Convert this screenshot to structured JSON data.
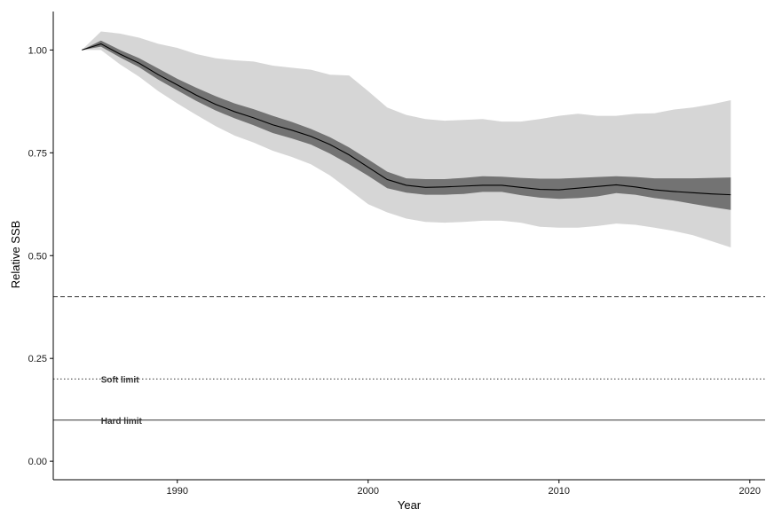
{
  "chart_data": {
    "type": "area",
    "title": "",
    "xlabel": "Year",
    "ylabel": "Relative SSB",
    "xlim": [
      1983.5,
      2020.8
    ],
    "ylim": [
      -0.045,
      1.1
    ],
    "x_ticks": [
      1990,
      2000,
      2010,
      2020
    ],
    "y_ticks": [
      0.0,
      0.25,
      0.5,
      0.75,
      1.0
    ],
    "x_tick_labels": [
      "1990",
      "2000",
      "2010",
      "2020"
    ],
    "y_tick_labels": [
      "0.00",
      "0.25",
      "0.50",
      "0.75",
      "1.00"
    ],
    "grid": false,
    "colors": {
      "outer_band": "#d6d6d6",
      "inner_band": "#737373",
      "median": "#000000",
      "reference": "#333333"
    },
    "x": [
      1985,
      1986,
      1987,
      1988,
      1989,
      1990,
      1991,
      1992,
      1993,
      1994,
      1995,
      1996,
      1997,
      1998,
      1999,
      2000,
      2001,
      2002,
      2003,
      2004,
      2005,
      2006,
      2007,
      2008,
      2009,
      2010,
      2011,
      2012,
      2013,
      2014,
      2015,
      2016,
      2017,
      2018,
      2019
    ],
    "series": [
      {
        "role": "median",
        "values": [
          1.0,
          1.015,
          0.99,
          0.968,
          0.94,
          0.915,
          0.89,
          0.868,
          0.85,
          0.835,
          0.818,
          0.805,
          0.79,
          0.77,
          0.745,
          0.715,
          0.685,
          0.671,
          0.666,
          0.667,
          0.669,
          0.671,
          0.671,
          0.666,
          0.661,
          0.66,
          0.664,
          0.668,
          0.672,
          0.667,
          0.66,
          0.656,
          0.653,
          0.65,
          0.648
        ]
      },
      {
        "role": "inner-band",
        "upper": [
          1.0,
          1.023,
          1.0,
          0.98,
          0.955,
          0.93,
          0.908,
          0.888,
          0.87,
          0.856,
          0.84,
          0.825,
          0.808,
          0.788,
          0.763,
          0.734,
          0.704,
          0.688,
          0.686,
          0.686,
          0.689,
          0.693,
          0.692,
          0.689,
          0.687,
          0.687,
          0.689,
          0.691,
          0.693,
          0.691,
          0.688,
          0.688,
          0.688,
          0.689,
          0.69
        ],
        "lower": [
          1.0,
          1.008,
          0.982,
          0.958,
          0.928,
          0.902,
          0.876,
          0.853,
          0.834,
          0.817,
          0.798,
          0.785,
          0.77,
          0.748,
          0.722,
          0.694,
          0.664,
          0.653,
          0.648,
          0.648,
          0.65,
          0.655,
          0.655,
          0.647,
          0.641,
          0.638,
          0.64,
          0.644,
          0.652,
          0.648,
          0.64,
          0.634,
          0.626,
          0.618,
          0.611
        ]
      },
      {
        "role": "outer-band",
        "upper": [
          1.0,
          1.045,
          1.04,
          1.03,
          1.015,
          1.005,
          0.99,
          0.98,
          0.975,
          0.972,
          0.962,
          0.957,
          0.952,
          0.94,
          0.938,
          0.9,
          0.86,
          0.842,
          0.832,
          0.828,
          0.83,
          0.832,
          0.826,
          0.826,
          0.832,
          0.84,
          0.845,
          0.84,
          0.84,
          0.845,
          0.846,
          0.855,
          0.86,
          0.868,
          0.878
        ],
        "lower": [
          1.0,
          1.0,
          0.965,
          0.935,
          0.9,
          0.87,
          0.842,
          0.815,
          0.792,
          0.775,
          0.755,
          0.74,
          0.722,
          0.695,
          0.66,
          0.625,
          0.605,
          0.59,
          0.582,
          0.58,
          0.582,
          0.585,
          0.585,
          0.58,
          0.57,
          0.568,
          0.568,
          0.572,
          0.578,
          0.575,
          0.568,
          0.56,
          0.55,
          0.535,
          0.52
        ]
      }
    ],
    "reference_lines": [
      {
        "y": 0.4,
        "style": "dashed",
        "label": ""
      },
      {
        "y": 0.2,
        "style": "dotted",
        "label": "Soft limit"
      },
      {
        "y": 0.1,
        "style": "solid",
        "label": "Hard limit"
      }
    ]
  }
}
